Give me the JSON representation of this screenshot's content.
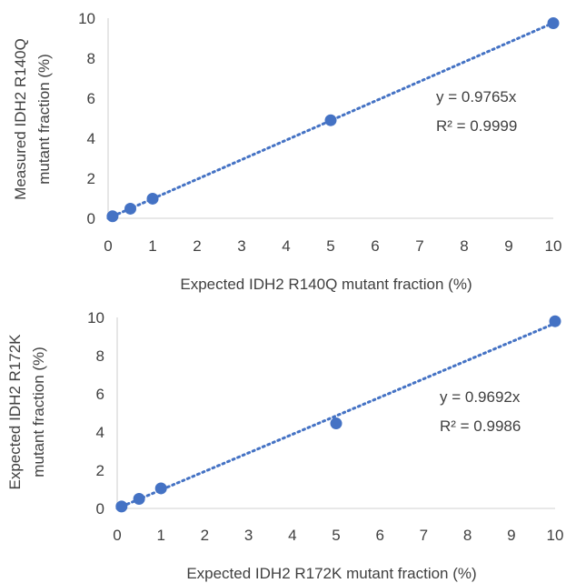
{
  "chart_data": [
    {
      "type": "scatter",
      "title": "",
      "xlabel": "Expected IDH2 R140Q mutant fraction (%)",
      "ylabel_lines": [
        "Measured IDH2 R140Q",
        "mutant fraction (%)"
      ],
      "xlim": [
        0,
        10
      ],
      "ylim": [
        0,
        10
      ],
      "xticks": [
        "0",
        "1",
        "2",
        "3",
        "4",
        "5",
        "6",
        "7",
        "8",
        "9",
        "10"
      ],
      "yticks": [
        "0",
        "2",
        "4",
        "6",
        "8",
        "10"
      ],
      "grid": false,
      "legend": "none",
      "points": [
        {
          "x": 0.1,
          "y": 0.1
        },
        {
          "x": 0.5,
          "y": 0.48
        },
        {
          "x": 1,
          "y": 0.98
        },
        {
          "x": 5,
          "y": 4.9
        },
        {
          "x": 10,
          "y": 9.75
        }
      ],
      "trendline": {
        "slope": 0.9765,
        "style": "dotted"
      },
      "annotations": [
        "y = 0.9765x",
        "R² = 0.9999"
      ],
      "color": "#4472C4"
    },
    {
      "type": "scatter",
      "title": "",
      "xlabel": "Expected IDH2 R172K mutant fraction (%)",
      "ylabel_lines": [
        "Expected IDH2 R172K",
        "mutant fraction (%)"
      ],
      "xlim": [
        0,
        10
      ],
      "ylim": [
        0,
        10
      ],
      "xticks": [
        "0",
        "1",
        "2",
        "3",
        "4",
        "5",
        "6",
        "7",
        "8",
        "9",
        "10"
      ],
      "yticks": [
        "0",
        "2",
        "4",
        "6",
        "8",
        "10"
      ],
      "grid": false,
      "legend": "none",
      "points": [
        {
          "x": 0.1,
          "y": 0.1
        },
        {
          "x": 0.5,
          "y": 0.5
        },
        {
          "x": 1,
          "y": 1.05
        },
        {
          "x": 5,
          "y": 4.45
        },
        {
          "x": 10,
          "y": 9.8
        }
      ],
      "trendline": {
        "slope": 0.9692,
        "style": "dotted"
      },
      "annotations": [
        "y = 0.9692x",
        "R² = 0.9986"
      ],
      "color": "#4472C4"
    }
  ]
}
